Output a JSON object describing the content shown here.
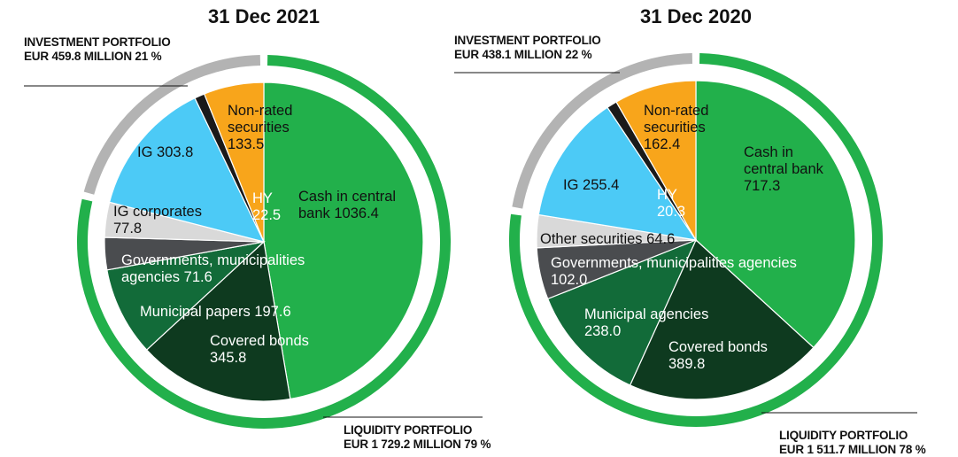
{
  "chart_data": [
    {
      "type": "pie",
      "title": "31 Dec 2021",
      "categories": [
        "Cash in central bank",
        "Covered bonds",
        "Municipal papers",
        "Governments, municipalities agencies",
        "IG corporates",
        "IG",
        "HY",
        "Non-rated securities"
      ],
      "values": [
        1036.4,
        345.8,
        197.6,
        71.6,
        77.8,
        303.8,
        22.5,
        133.5
      ],
      "value_labels": [
        "1036.4",
        "345.8",
        "197.6",
        "71.6",
        "77.8",
        "303.8",
        "22.5",
        "133.5"
      ],
      "colors": [
        "#22b04b",
        "#0e3a1f",
        "#126b39",
        "#4a4c4f",
        "#d9d9d9",
        "#4ccaf6",
        "#1a1a1a",
        "#f8a51b"
      ],
      "ring": {
        "categories": [
          "LIQUIDITY PORTFOLIO",
          "INVESTMENT PORTFOLIO"
        ],
        "values": [
          1729.2,
          459.8
        ],
        "value_labels": [
          "EUR 1 729.2 MILLION 79 %",
          "EUR 459.8 MILLION 21 %"
        ],
        "colors": [
          "#22b04b",
          "#b3b3b3"
        ]
      }
    },
    {
      "type": "pie",
      "title": "31 Dec 2020",
      "categories": [
        "Cash in central bank",
        "Covered bonds",
        "Municipal agencies",
        "Governments, municipalities agencies",
        "Other securities",
        "IG",
        "HY",
        "Non-rated securities"
      ],
      "values": [
        717.3,
        389.8,
        238.0,
        102.0,
        64.6,
        255.4,
        20.3,
        162.4
      ],
      "value_labels": [
        "717.3",
        "389.8",
        "238.0",
        "102.0",
        "64.6",
        "255.4",
        "20.3",
        "162.4"
      ],
      "colors": [
        "#22b04b",
        "#0e3a1f",
        "#126b39",
        "#4a4c4f",
        "#d9d9d9",
        "#4ccaf6",
        "#1a1a1a",
        "#f8a51b"
      ],
      "ring": {
        "categories": [
          "LIQUIDITY PORTFOLIO",
          "INVESTMENT PORTFOLIO"
        ],
        "values": [
          1511.7,
          438.1
        ],
        "value_labels": [
          "EUR 1 511.7 MILLION 78 %",
          "EUR 438.1 MILLION 22 %"
        ],
        "colors": [
          "#22b04b",
          "#b3b3b3"
        ]
      }
    }
  ]
}
